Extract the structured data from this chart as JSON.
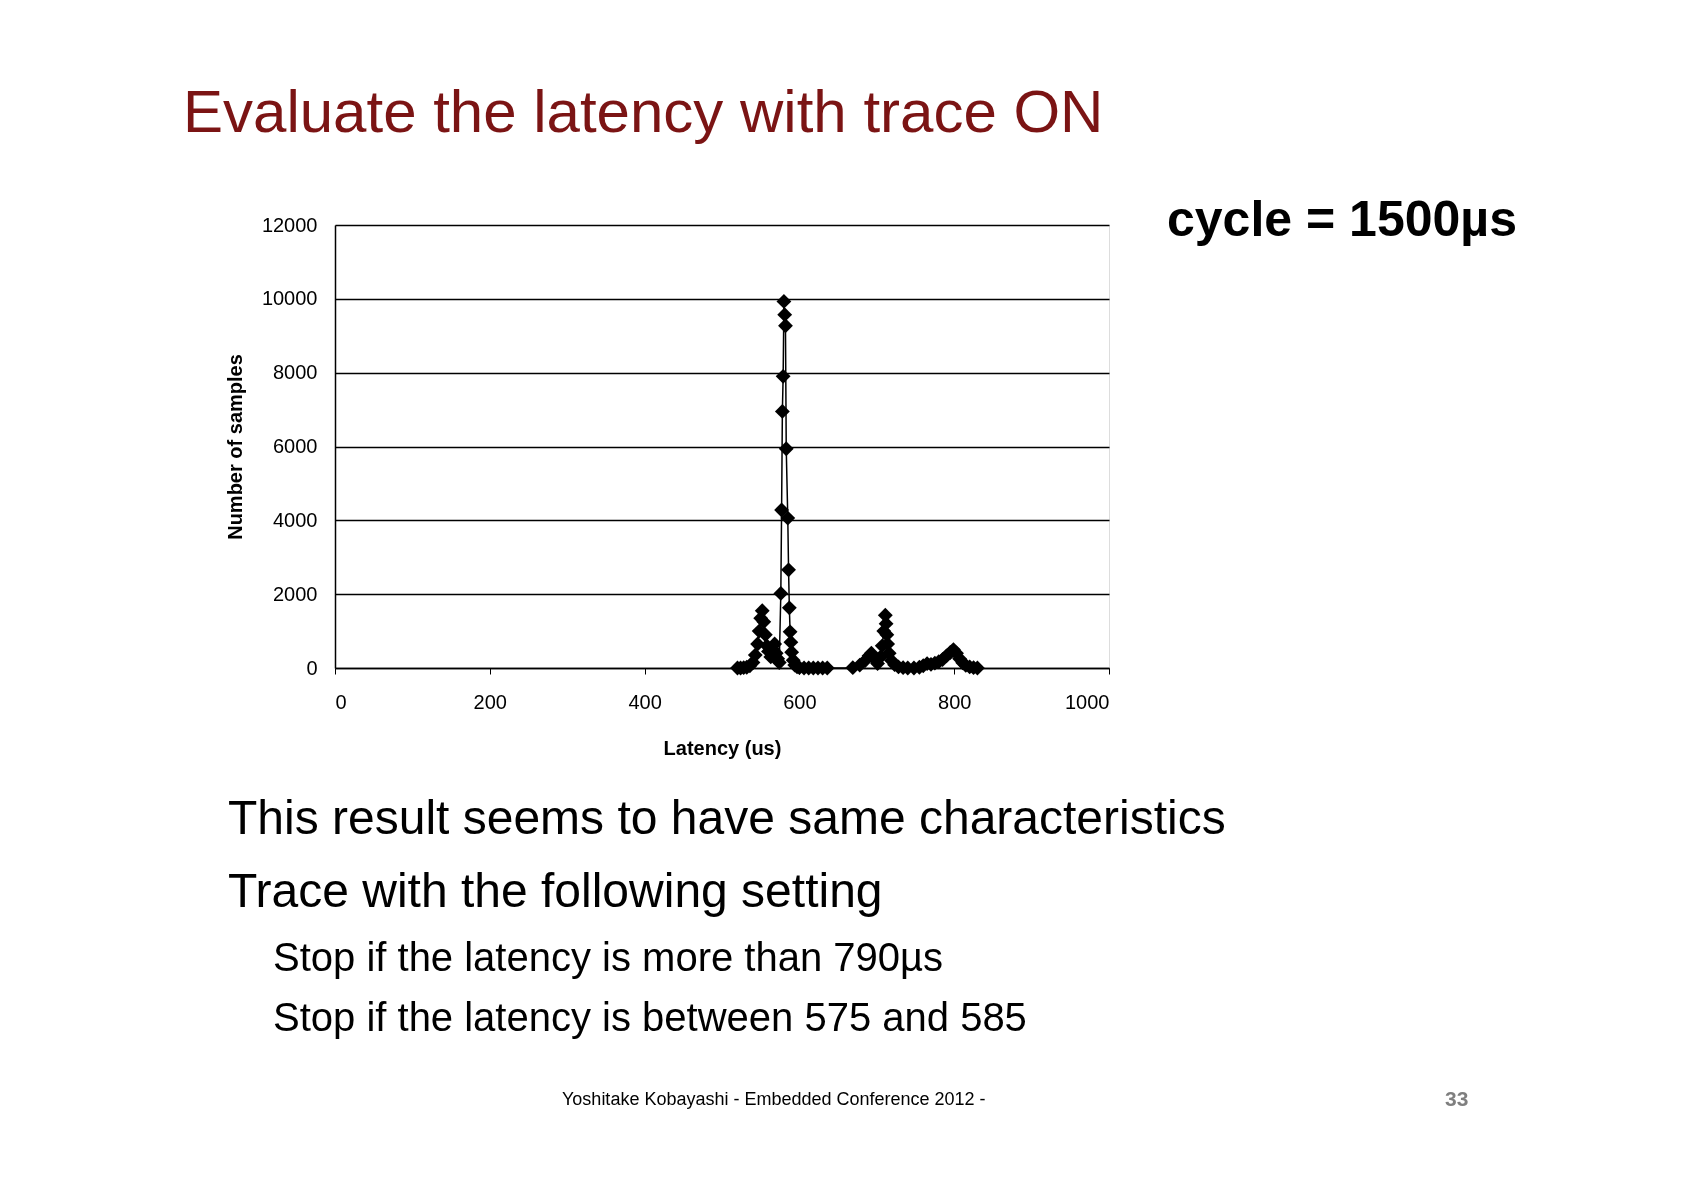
{
  "chart_data": {
    "type": "line",
    "title": "Evaluate the latency with trace ON",
    "xlabel": "Latency (us)",
    "ylabel": "Number of samples",
    "annotations": [
      "cycle = 1500µs",
      "This result seems to have same characteristics",
      "Trace with the following setting",
      "Stop if the latency is more than 790µs",
      "Stop if the latency is between 575 and 585",
      "Yoshitake Kobayashi  - Embedded Conference 2012 -",
      "33"
    ],
    "x": [
      520,
      524,
      528,
      532,
      536,
      540,
      543,
      546,
      548,
      550,
      552,
      554,
      556,
      558,
      560,
      563,
      566,
      568,
      570,
      572,
      574,
      576,
      577,
      578,
      579,
      580,
      581,
      582,
      583,
      585,
      586,
      587,
      588,
      589,
      590,
      592,
      594,
      597,
      600,
      606,
      612,
      618,
      624,
      630,
      636,
      669,
      678,
      685,
      690,
      693,
      697,
      701,
      705,
      707,
      709,
      711,
      712,
      713,
      714,
      716,
      719,
      723,
      728,
      734,
      740,
      748,
      755,
      760,
      765,
      770,
      775,
      780,
      785,
      790,
      795,
      799,
      803,
      807,
      811,
      815,
      820,
      825,
      830
    ],
    "series": [
      {
        "color": "#000000",
        "values": [
          0,
          0,
          10,
          20,
          60,
          150,
          350,
          650,
          1000,
          1350,
          1550,
          1250,
          900,
          600,
          450,
          300,
          500,
          650,
          400,
          250,
          150,
          2020,
          4280,
          6950,
          7900,
          9930,
          9570,
          9270,
          5940,
          4060,
          2660,
          1630,
          980,
          700,
          430,
          210,
          80,
          30,
          10,
          0,
          0,
          0,
          0,
          0,
          0,
          10,
          80,
          200,
          330,
          400,
          250,
          120,
          300,
          600,
          1000,
          1430,
          1200,
          900,
          650,
          400,
          200,
          90,
          30,
          10,
          0,
          0,
          20,
          60,
          120,
          100,
          130,
          170,
          230,
          330,
          420,
          500,
          400,
          250,
          140,
          70,
          30,
          10,
          0
        ]
      }
    ],
    "xlim": [
      0,
      1000
    ],
    "ylim": [
      0,
      12000
    ],
    "xticks": [
      0,
      200,
      400,
      600,
      800,
      1000
    ],
    "yticks": [
      0,
      2000,
      4000,
      6000,
      8000,
      10000,
      12000
    ],
    "grid": "y",
    "marker": "diamond",
    "line_style": "solid"
  }
}
